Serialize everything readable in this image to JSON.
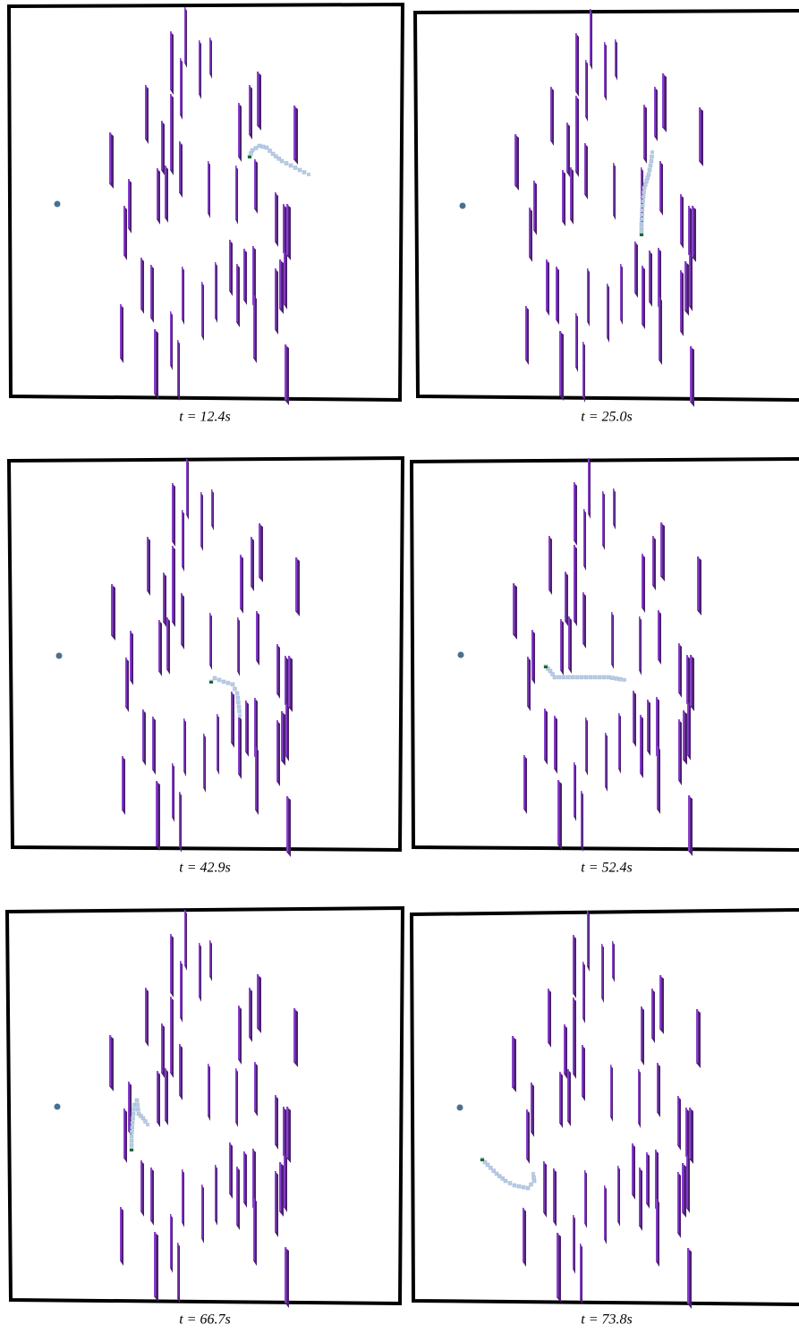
{
  "panels": [
    {
      "caption": "t = 12.4s"
    },
    {
      "caption": "t = 25.0s"
    },
    {
      "caption": "t = 42.9s"
    },
    {
      "caption": "t = 52.4s"
    },
    {
      "caption": "t = 66.7s"
    },
    {
      "caption": "t = 73.8s"
    }
  ]
}
